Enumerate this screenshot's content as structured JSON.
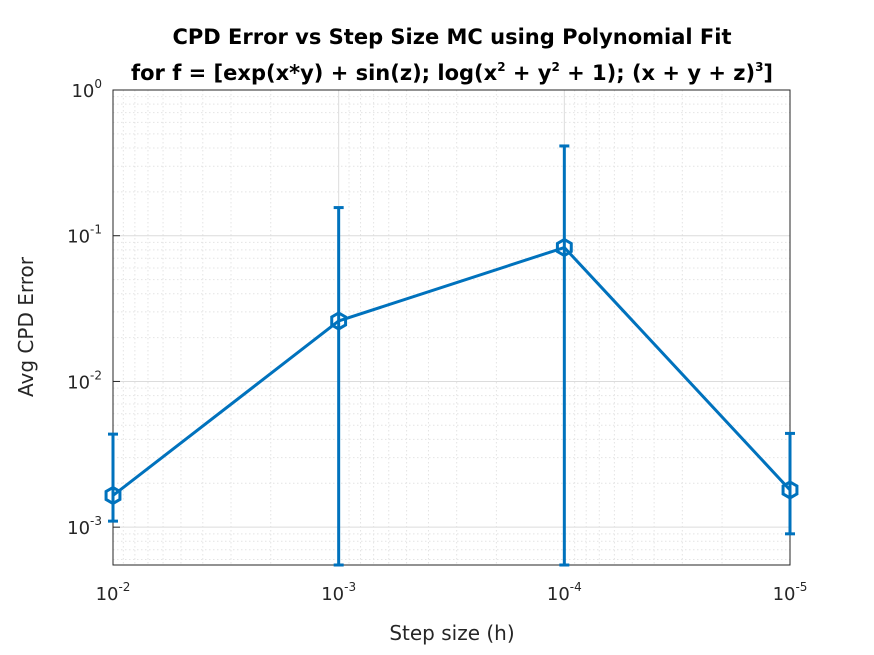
{
  "chart_data": {
    "type": "line",
    "title_line1": "CPD Error vs Step Size MC using Polynomial Fit",
    "title_line2_parts": [
      "for f = [exp(x*y) + sin(z); log(x",
      "2",
      " + y",
      "2",
      " + 1); (x + y + z)",
      "3",
      "]"
    ],
    "xlabel": "Step size (h)",
    "ylabel": "Avg CPD Error",
    "x_scale": "log",
    "x_direction": "reverse",
    "y_scale": "log",
    "xlim": [
      0.01,
      1e-05
    ],
    "ylim": [
      0.00055,
      1
    ],
    "grid": "on, major and minor",
    "x_ticks": [
      {
        "base": "10",
        "exp": "-2"
      },
      {
        "base": "10",
        "exp": "-3"
      },
      {
        "base": "10",
        "exp": "-4"
      },
      {
        "base": "10",
        "exp": "-5"
      }
    ],
    "y_ticks": [
      {
        "base": "10",
        "exp": "0"
      },
      {
        "base": "10",
        "exp": "-1"
      },
      {
        "base": "10",
        "exp": "-2"
      },
      {
        "base": "10",
        "exp": "-3"
      }
    ],
    "series": [
      {
        "color": "#0072bd",
        "marker": "hexagon",
        "x": [
          0.01,
          0.001,
          0.0001,
          1e-05
        ],
        "y": [
          0.00165,
          0.026,
          0.083,
          0.0018
        ],
        "err_lower": [
          0.00055,
          0.026,
          0.083,
          0.0009
        ],
        "err_upper": [
          0.0027,
          0.13,
          0.33,
          0.0026
        ]
      }
    ]
  }
}
